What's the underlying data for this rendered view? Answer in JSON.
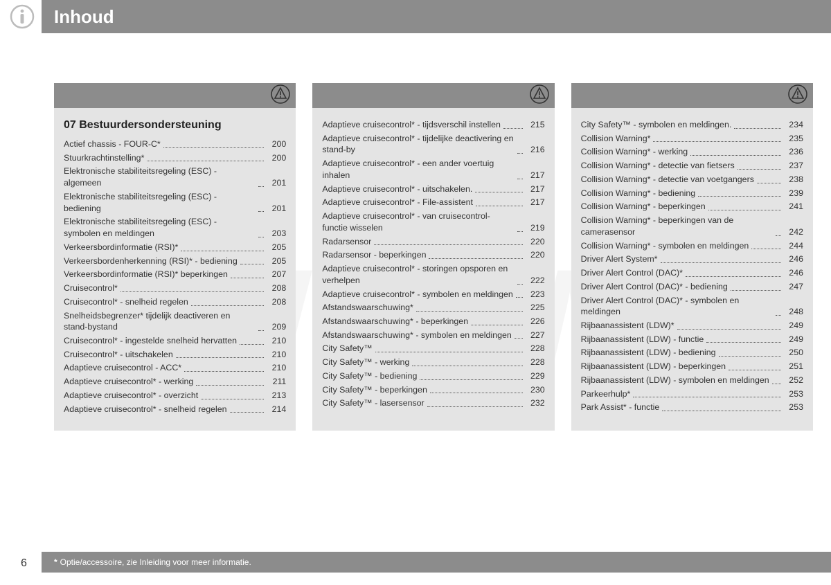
{
  "header": {
    "title": "Inhoud"
  },
  "section": {
    "number_title": "07 Bestuurdersondersteuning"
  },
  "page_number": "6",
  "footnote": "Optie/accessoire, zie Inleiding voor meer informatie.",
  "footnote_marker": "*",
  "watermark": "WWW",
  "columns": [
    {
      "has_section_title": true,
      "entries": [
        {
          "text": "Actief chassis - FOUR-C*",
          "page": "200"
        },
        {
          "text": "Stuurkrachtinstelling*",
          "page": "200"
        },
        {
          "text": "Elektronische stabiliteitsregeling (ESC) - algemeen",
          "page": "201"
        },
        {
          "text": "Elektronische stabiliteitsregeling (ESC) - bediening",
          "page": "201"
        },
        {
          "text": "Elektronische stabiliteitsregeling (ESC) - symbolen en meldingen",
          "page": "203"
        },
        {
          "text": "Verkeersbordinformatie (RSI)*",
          "page": "205"
        },
        {
          "text": "Verkeersbordenherkenning (RSI)* - bediening",
          "page": "205"
        },
        {
          "text": "Verkeersbordinformatie (RSI)* beperkingen",
          "page": "207"
        },
        {
          "text": "Cruisecontrol*",
          "page": "208"
        },
        {
          "text": "Cruisecontrol* - snelheid regelen",
          "page": "208"
        },
        {
          "text": "Snelheidsbegrenzer* tijdelijk deactiveren en stand-bystand",
          "page": "209"
        },
        {
          "text": "Cruisecontrol* - ingestelde snelheid hervatten",
          "page": "210"
        },
        {
          "text": "Cruisecontrol* - uitschakelen",
          "page": "210"
        },
        {
          "text": "Adaptieve cruisecontrol - ACC*",
          "page": "210"
        },
        {
          "text": "Adaptieve cruisecontrol* - werking",
          "page": "211"
        },
        {
          "text": "Adaptieve cruisecontrol* - overzicht",
          "page": "213"
        },
        {
          "text": "Adaptieve cruisecontrol* - snelheid regelen",
          "page": "214"
        }
      ]
    },
    {
      "has_section_title": false,
      "entries": [
        {
          "text": "Adaptieve cruisecontrol* - tijdsverschil instellen",
          "page": "215"
        },
        {
          "text": "Adaptieve cruisecontrol* - tijdelijke deactivering en stand-by",
          "page": "216"
        },
        {
          "text": "Adaptieve cruisecontrol* - een ander voertuig inhalen",
          "page": "217"
        },
        {
          "text": "Adaptieve cruisecontrol* - uitschakelen.",
          "page": "217"
        },
        {
          "text": "Adaptieve cruisecontrol* - File-assistent",
          "page": "217"
        },
        {
          "text": "Adaptieve cruisecontrol* - van cruisecontrol-functie wisselen",
          "page": "219"
        },
        {
          "text": "Radarsensor",
          "page": "220"
        },
        {
          "text": "Radarsensor - beperkingen",
          "page": "220"
        },
        {
          "text": "Adaptieve cruisecontrol* - storingen opsporen en verhelpen",
          "page": "222"
        },
        {
          "text": "Adaptieve cruisecontrol* - symbolen en meldingen",
          "page": "223"
        },
        {
          "text": "Afstandswaarschuwing*",
          "page": "225"
        },
        {
          "text": "Afstandswaarschuwing* - beperkingen",
          "page": "226"
        },
        {
          "text": "Afstandswaarschuwing* - symbolen en meldingen",
          "page": "227"
        },
        {
          "text": "City Safety™",
          "page": "228"
        },
        {
          "text": "City Safety™ - werking",
          "page": "228"
        },
        {
          "text": "City Safety™ - bediening",
          "page": "229"
        },
        {
          "text": "City Safety™ - beperkingen",
          "page": "230"
        },
        {
          "text": "City Safety™ - lasersensor",
          "page": "232"
        }
      ]
    },
    {
      "has_section_title": false,
      "entries": [
        {
          "text": "City Safety™ - symbolen en meldingen.",
          "page": "234"
        },
        {
          "text": "Collision Warning*",
          "page": "235"
        },
        {
          "text": "Collision Warning* - werking",
          "page": "236"
        },
        {
          "text": "Collision Warning* - detectie van fietsers",
          "page": "237"
        },
        {
          "text": "Collision Warning* - detectie van voetgangers",
          "page": "238"
        },
        {
          "text": "Collision Warning* - bediening",
          "page": "239"
        },
        {
          "text": "Collision Warning* - beperkingen",
          "page": "241"
        },
        {
          "text": "Collision Warning* - beperkingen van de camerasensor",
          "page": "242"
        },
        {
          "text": "Collision Warning* - symbolen en meldingen",
          "page": "244"
        },
        {
          "text": "Driver Alert System*",
          "page": "246"
        },
        {
          "text": "Driver Alert Control (DAC)*",
          "page": "246"
        },
        {
          "text": "Driver Alert Control (DAC)* - bediening",
          "page": "247"
        },
        {
          "text": "Driver Alert Control (DAC)* - symbolen en meldingen",
          "page": "248"
        },
        {
          "text": "Rijbaanassistent (LDW)*",
          "page": "249"
        },
        {
          "text": "Rijbaanassistent (LDW) - functie",
          "page": "249"
        },
        {
          "text": "Rijbaanassistent (LDW) - bediening",
          "page": "250"
        },
        {
          "text": "Rijbaanassistent (LDW) - beperkingen",
          "page": "251"
        },
        {
          "text": "Rijbaanassistent (LDW) - symbolen en meldingen",
          "page": "252"
        },
        {
          "text": "Parkeerhulp*",
          "page": "253"
        },
        {
          "text": "Park Assist* - functie",
          "page": "253"
        }
      ]
    }
  ],
  "colors": {
    "header_bg": "#8c8c8c",
    "col_bg": "#e4e4e4",
    "text": "#333333",
    "white": "#ffffff"
  }
}
